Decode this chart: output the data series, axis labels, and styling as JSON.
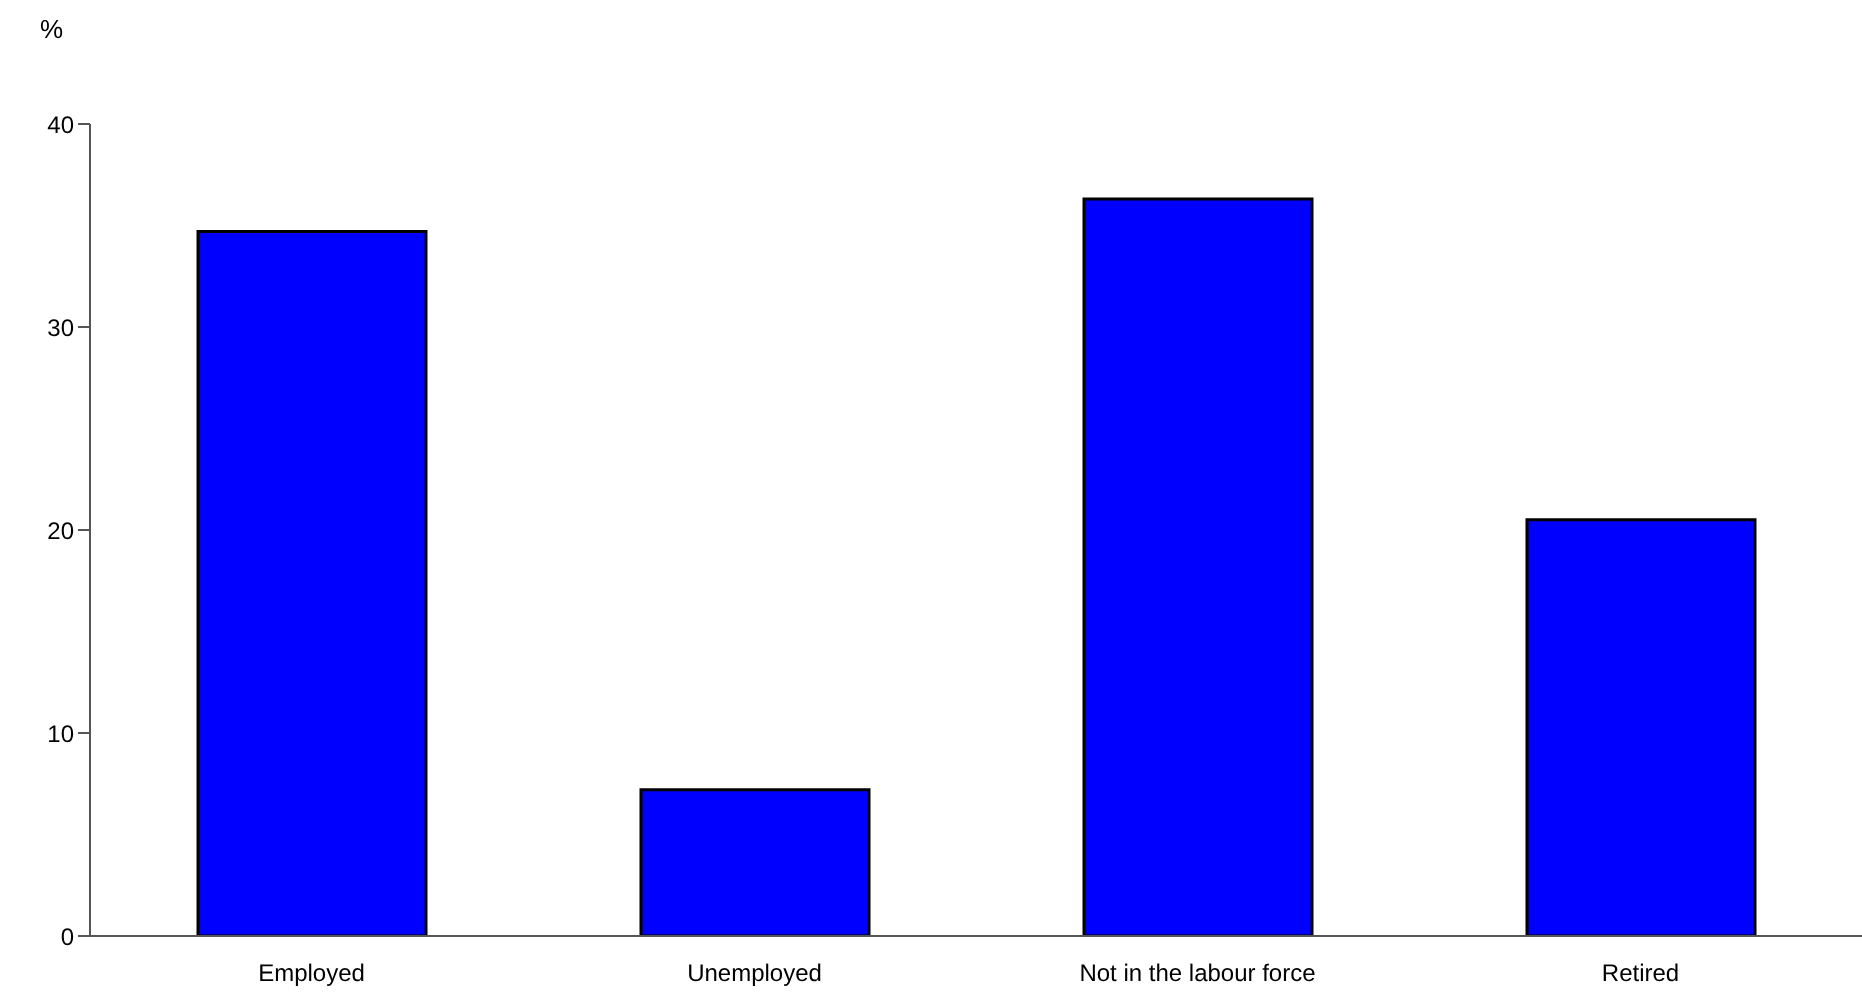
{
  "chart_data": {
    "type": "bar",
    "ylabel": "%",
    "categories": [
      "Employed",
      "Unemployed",
      "Not in the labour force",
      "Retired"
    ],
    "values": [
      34.7,
      7.2,
      36.3,
      20.5
    ],
    "color": "#0000ff",
    "ylim": [
      0,
      40
    ],
    "yticks": [
      0,
      10,
      20,
      30,
      40
    ],
    "grid": false,
    "legend": false
  }
}
